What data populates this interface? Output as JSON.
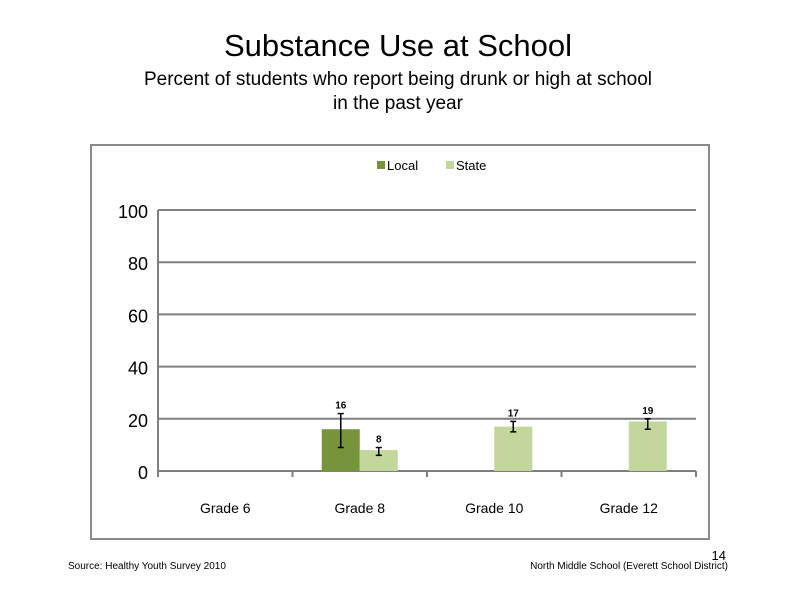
{
  "slide": {
    "title": "Substance Use at School",
    "subtitle_line1": "Percent of students who report being drunk or high at school",
    "subtitle_line2": "in the past year",
    "source": "Source: Healthy Youth Survey 2010",
    "school": "North Middle School (Everett School District)",
    "page_number": "14"
  },
  "colors": {
    "local": "#77933c",
    "state": "#c3d69b",
    "grid": "#7f7f7f"
  },
  "chart_data": {
    "type": "bar",
    "title": "Substance Use at School",
    "subtitle": "Percent of students who report being drunk or high at school in the past year",
    "categories": [
      "Grade 6",
      "Grade 8",
      "Grade 10",
      "Grade 12"
    ],
    "series": [
      {
        "name": "Local",
        "values": [
          null,
          16,
          null,
          null
        ],
        "labels": [
          "",
          "16",
          "",
          ""
        ],
        "error": [
          null,
          [
            9,
            22
          ],
          null,
          null
        ]
      },
      {
        "name": "State",
        "values": [
          null,
          8,
          17,
          19
        ],
        "labels": [
          "",
          "8",
          "17",
          "19"
        ],
        "error": [
          null,
          [
            6,
            9
          ],
          [
            15,
            19
          ],
          [
            16,
            20
          ]
        ]
      }
    ],
    "ylim": [
      0,
      100
    ],
    "yticks": [
      0,
      20,
      40,
      60,
      80,
      100
    ],
    "grid": true,
    "legend_position": "top"
  }
}
